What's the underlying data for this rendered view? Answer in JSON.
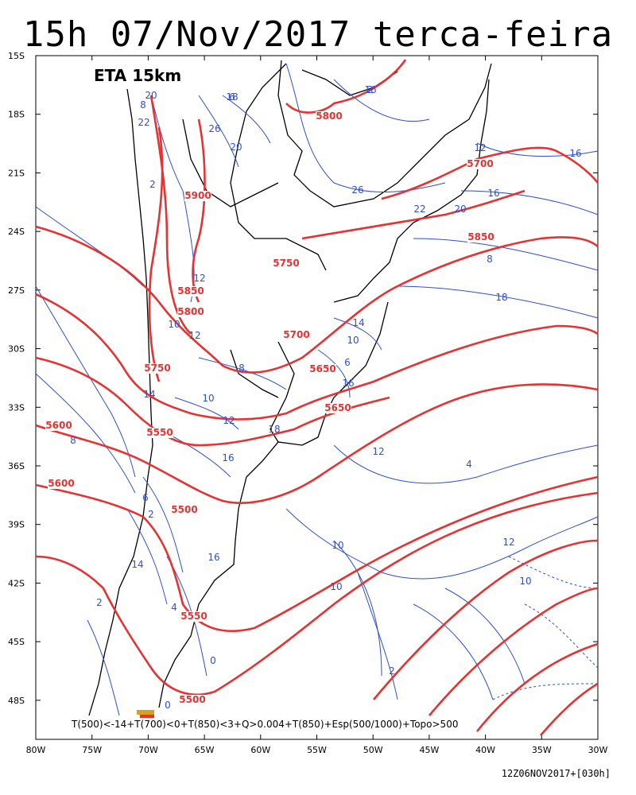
{
  "title": "15h 07/Nov/2017 terca-feira",
  "model_label": "ETA 15km",
  "formula": "T(500)<-14+T(700)<0+T(850)<3+Q>0.004+T(850)+Esp(500/1000)+Topo>500",
  "run_label": "12Z06NOV2017+[030h]",
  "colors": {
    "geopotential": "#e63232",
    "thickness": "#2e4fd6",
    "coast": "#000000",
    "frame": "#000000"
  },
  "map": {
    "lon_range": [
      -80,
      -30
    ],
    "lat_range": [
      -15,
      -50
    ],
    "lat_ticks": [
      "15S",
      "18S",
      "21S",
      "24S",
      "27S",
      "30S",
      "33S",
      "36S",
      "39S",
      "42S",
      "45S",
      "48S"
    ],
    "lon_ticks": [
      "80W",
      "75W",
      "70W",
      "65W",
      "60W",
      "55W",
      "50W",
      "45W",
      "40W",
      "35W",
      "30W"
    ],
    "geopotential_labels": [
      "5800",
      "5700",
      "5900",
      "5850",
      "5750",
      "5850",
      "5800",
      "5700",
      "5750",
      "5650",
      "5650",
      "5600",
      "5550",
      "5600",
      "5500",
      "5550",
      "5500"
    ],
    "thickness_labels": [
      "18",
      "16",
      "20",
      "22",
      "26",
      "20",
      "8",
      "12",
      "2",
      "16",
      "26",
      "22",
      "20",
      "16",
      "8",
      "18",
      "12",
      "10",
      "12",
      "14",
      "10",
      "8",
      "6",
      "16",
      "14",
      "10",
      "12",
      "8",
      "18",
      "12",
      "16",
      "4",
      "6",
      "2",
      "16",
      "14",
      "10",
      "10",
      "12",
      "10",
      "4",
      "2",
      "0",
      "2",
      "0",
      "6",
      "2"
    ]
  }
}
